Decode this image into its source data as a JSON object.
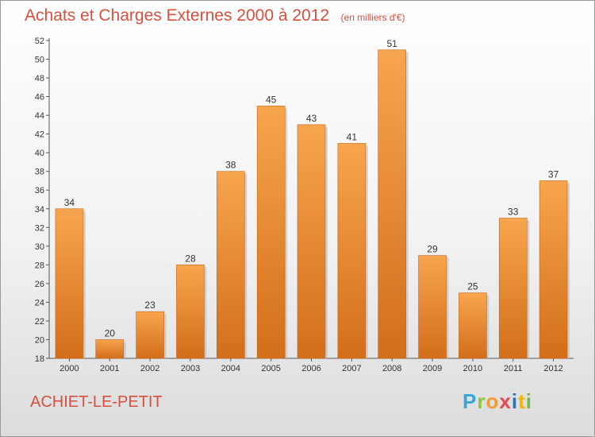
{
  "chart_data": {
    "type": "bar",
    "title": "Achats et Charges Externes 2000 à 2012",
    "unit": "(en milliers d'€)",
    "categories": [
      "2000",
      "2001",
      "2002",
      "2003",
      "2004",
      "2005",
      "2006",
      "2007",
      "2008",
      "2009",
      "2010",
      "2011",
      "2012"
    ],
    "values": [
      34,
      20,
      23,
      28,
      38,
      45,
      43,
      41,
      51,
      29,
      25,
      33,
      37
    ],
    "ylim": [
      18,
      52
    ],
    "yticks": [
      18,
      20,
      22,
      24,
      26,
      28,
      30,
      32,
      34,
      36,
      38,
      40,
      42,
      44,
      46,
      48,
      50,
      52
    ],
    "grid": false,
    "bar_color_top": "#f7a54e",
    "bar_color_bottom": "#d36e1a"
  },
  "commune": "ACHIET-LE-PETIT",
  "logo": {
    "letters": [
      "P",
      "r",
      "o",
      "x",
      "i",
      "t",
      "i"
    ]
  },
  "colors": {
    "title": "#d6503f",
    "axis": "#555555"
  }
}
